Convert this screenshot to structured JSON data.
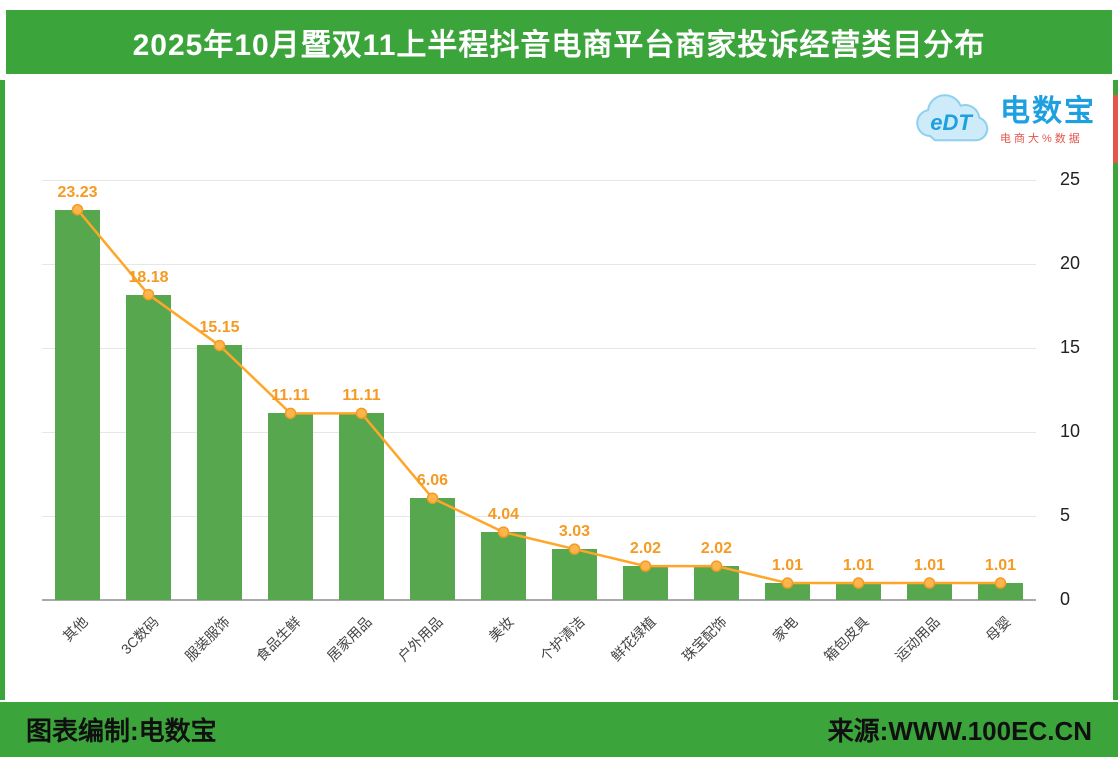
{
  "header": {
    "title": "2025年10月暨双11上半程抖音电商平台商家投诉经营类目分布"
  },
  "logo": {
    "cloud_text": "eDT",
    "brand": "电数宝",
    "subtitle": "电商大%数据"
  },
  "footer": {
    "credit": "图表编制:电数宝",
    "source": "来源:WWW.100EC.CN"
  },
  "colors": {
    "banner_green": "#3BA43A",
    "bar_green": "#57A74F",
    "line_orange": "#FFA629",
    "marker_fill": "#FDB54E",
    "label_orange": "#F59A23",
    "grid": "#E6E6E6",
    "axis": "#AAAAAA",
    "brand_blue": "#1D9FE0",
    "accent_red": "#E2574C"
  },
  "chart_data": {
    "type": "bar",
    "overlay": "line",
    "title": "2025年10月暨双11上半程抖音电商平台商家投诉经营类目分布",
    "categories": [
      "其他",
      "3C数码",
      "服装服饰",
      "食品生鲜",
      "居家用品",
      "户外用品",
      "美妆",
      "个护清洁",
      "鲜花绿植",
      "珠宝配饰",
      "家电",
      "箱包皮具",
      "运动用品",
      "母婴"
    ],
    "values": [
      23.23,
      18.18,
      15.15,
      11.11,
      11.11,
      6.06,
      4.04,
      3.03,
      2.02,
      2.02,
      1.01,
      1.01,
      1.01,
      1.01
    ],
    "value_labels": [
      "23.23",
      "18.18",
      "15.15",
      "11.11",
      "11.11",
      "6.06",
      "4.04",
      "3.03",
      "2.02",
      "2.02",
      "1.01",
      "1.01",
      "1.01",
      "1.01"
    ],
    "xlabel": "",
    "ylabel": "",
    "ylim": [
      0,
      25
    ],
    "yticks": [
      0,
      5,
      10,
      15,
      20,
      25
    ],
    "y_axis_side": "right",
    "grid": true,
    "legend": "none"
  }
}
